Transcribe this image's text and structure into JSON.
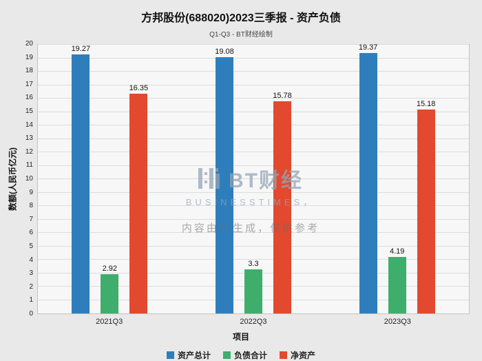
{
  "title": "方邦股份(688020)2023三季报 - 资产负债",
  "subtitle": "Q1-Q3 - BT财经绘制",
  "watermark": {
    "logo_text": "BT财经",
    "logo_sub": "BUSINESSTIMES，",
    "disclaimer": "内容由AI生成，仅供参考"
  },
  "chart_data": {
    "type": "bar",
    "title": "方邦股份(688020)2023三季报 - 资产负债",
    "subtitle": "Q1-Q3 - BT财经绘制",
    "categories": [
      "2021Q3",
      "2022Q3",
      "2023Q3"
    ],
    "series": [
      {
        "name": "资产总计",
        "color": "#2e7ebb",
        "values": [
          19.27,
          19.08,
          19.37
        ]
      },
      {
        "name": "负债合计",
        "color": "#3fae6c",
        "values": [
          2.92,
          3.3,
          4.19
        ]
      },
      {
        "name": "净资产",
        "color": "#e2492f",
        "values": [
          16.35,
          15.78,
          15.18
        ]
      }
    ],
    "xlabel": "项目",
    "ylabel": "数额(人民币亿元)",
    "ylim": [
      0,
      20
    ],
    "ytick_step": 1,
    "grid": true,
    "legend_position": "bottom"
  }
}
